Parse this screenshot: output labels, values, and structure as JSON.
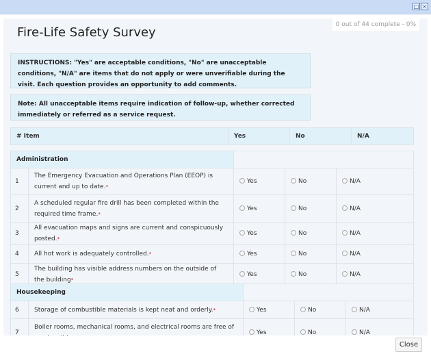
{
  "window": {
    "maximize_icon": "maximize-icon",
    "close_icon": "close-icon"
  },
  "progress": "0 out of 44 complete - 0%",
  "title": "Fire-Life Safety Survey",
  "instructions": "INSTRUCTIONS: \"Yes\" are acceptable conditions, \"No\" are unacceptable conditions, \"N/A\" are items that do not apply or were unverifiable during the visit. Each question provides an opportunity to add comments.",
  "note": "Note: All unacceptable items require indication of follow-up, whether corrected immediately or referred as a service request.",
  "header": {
    "item": "# Item",
    "yes": "Yes",
    "no": "No",
    "na": "N/A"
  },
  "options": {
    "yes": "Yes",
    "no": "No",
    "na": "N/A"
  },
  "required_mark": "*",
  "sections": [
    {
      "title": "Administration",
      "items": [
        {
          "num": "1",
          "text": "The Emergency Evacuation and Operations Plan (EEOP) is current and up to date."
        },
        {
          "num": "2",
          "text": "A scheduled regular fire drill has been completed within the required time frame."
        },
        {
          "num": "3",
          "text": "All evacuation maps and signs are current and conspicuously posted."
        },
        {
          "num": "4",
          "text": "All hot work is adequately controlled."
        },
        {
          "num": "5",
          "text": "The building has visible address numbers on the outside of the building"
        }
      ]
    },
    {
      "title": "Housekeeping",
      "items": [
        {
          "num": "6",
          "text": "Storage of combustible materials is kept neat and orderly."
        },
        {
          "num": "7",
          "text": "Boiler rooms, mechanical rooms, and electrical rooms are free of combustible storage."
        }
      ]
    }
  ],
  "footer": {
    "close": "Close"
  }
}
